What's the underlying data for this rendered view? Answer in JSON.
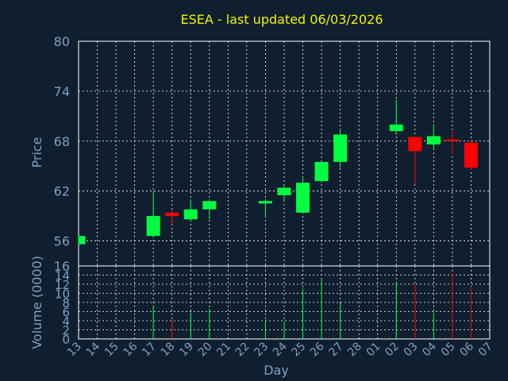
{
  "chart_data": {
    "type": "candlestick",
    "title": "ESEA - last updated 06/03/2026",
    "price_panel": {
      "ylabel": "Price",
      "ylim": [
        53,
        80
      ],
      "yticks": [
        56,
        62,
        68,
        74,
        80
      ]
    },
    "volume_panel": {
      "ylabel": "Volume (0000)",
      "ylim": [
        0,
        16
      ],
      "yticks": [
        0,
        2,
        4,
        6,
        8,
        10,
        12,
        14,
        16
      ]
    },
    "xlabel": "Day",
    "x_ticks": [
      "13",
      "14",
      "15",
      "16",
      "17",
      "18",
      "19",
      "20",
      "21",
      "22",
      "23",
      "24",
      "25",
      "26",
      "27",
      "28",
      "01",
      "02",
      "03",
      "04",
      "05",
      "06",
      "07"
    ],
    "candles": [
      {
        "day": "13",
        "open": 55.6,
        "high": 56.6,
        "low": 55.6,
        "close": 56.6,
        "volume": 0.0
      },
      {
        "day": "17",
        "open": 56.6,
        "high": 62.0,
        "low": 56.4,
        "close": 59.0,
        "volume": 7.0
      },
      {
        "day": "18",
        "open": 59.4,
        "high": 59.7,
        "low": 58.0,
        "close": 59.0,
        "volume": 4.0
      },
      {
        "day": "19",
        "open": 58.6,
        "high": 61.0,
        "low": 58.4,
        "close": 59.8,
        "volume": 5.8
      },
      {
        "day": "20",
        "open": 59.8,
        "high": 61.0,
        "low": 58.6,
        "close": 60.8,
        "volume": 6.6
      },
      {
        "day": "23",
        "open": 60.5,
        "high": 61.0,
        "low": 58.8,
        "close": 60.8,
        "volume": 4.0
      },
      {
        "day": "24",
        "open": 61.5,
        "high": 62.6,
        "low": 60.8,
        "close": 62.4,
        "volume": 3.8
      },
      {
        "day": "25",
        "open": 59.4,
        "high": 63.8,
        "low": 59.4,
        "close": 63.0,
        "volume": 11.0
      },
      {
        "day": "26",
        "open": 63.2,
        "high": 65.5,
        "low": 63.0,
        "close": 65.5,
        "volume": 13.0
      },
      {
        "day": "27",
        "open": 65.5,
        "high": 69.5,
        "low": 64.8,
        "close": 68.8,
        "volume": 8.0
      },
      {
        "day": "02",
        "open": 69.2,
        "high": 73.0,
        "low": 68.8,
        "close": 70.0,
        "volume": 12.5
      },
      {
        "day": "03",
        "open": 68.5,
        "high": 68.6,
        "low": 62.8,
        "close": 66.8,
        "volume": 12.0
      },
      {
        "day": "04",
        "open": 67.6,
        "high": 70.0,
        "low": 67.0,
        "close": 68.6,
        "volume": 5.8
      },
      {
        "day": "05",
        "open": 68.2,
        "high": 69.2,
        "low": 66.4,
        "close": 68.0,
        "volume": 14.5
      },
      {
        "day": "06",
        "open": 67.8,
        "high": 68.2,
        "low": 64.5,
        "close": 64.8,
        "volume": 11.5
      }
    ],
    "colors": {
      "background": "#0f1f30",
      "up": "#00ff40",
      "down": "#ff0000",
      "axis_text": "#7f9fc0",
      "title": "#f2f200",
      "grid": "#ffffff"
    },
    "grid": true
  }
}
